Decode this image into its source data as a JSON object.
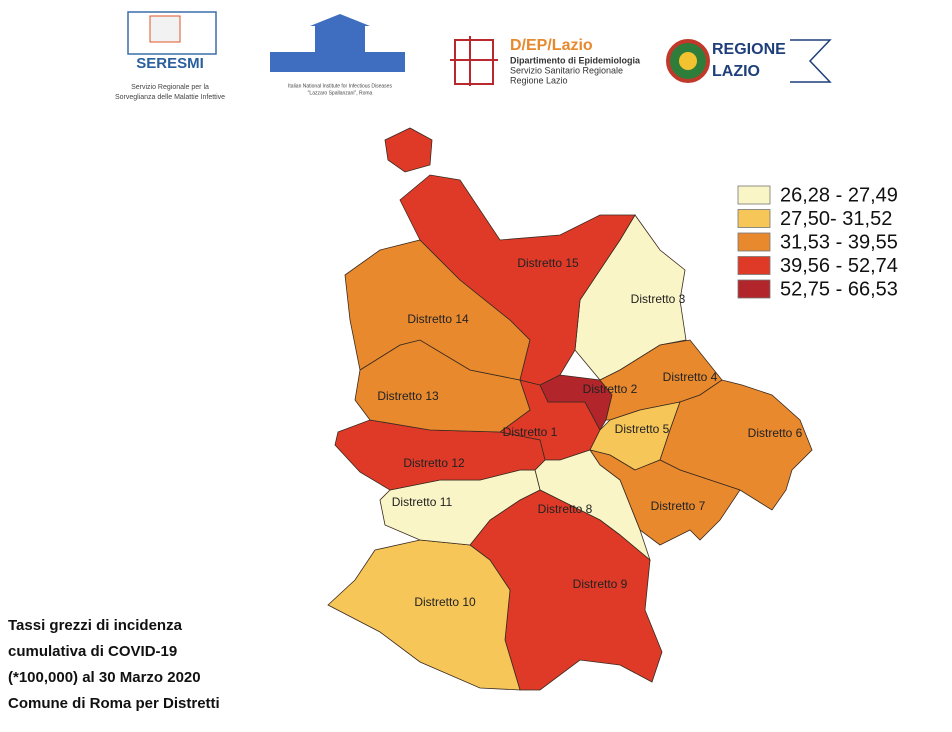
{
  "header": {
    "logos": [
      {
        "title": "SERESMI",
        "lines": [
          "Servizio Regionale per la",
          "Sorveglianza delle Malattie Infettive"
        ]
      },
      {
        "lines": [
          "Italian National Institute for Infectious Diseases",
          "\"Lazzaro Spallanzani\", Roma"
        ]
      },
      {
        "title": "D/EP/Lazio",
        "lines": [
          "Dipartimento di Epidemiologia",
          "Servizio Sanitario Regionale",
          "Regione Lazio"
        ]
      },
      {
        "lines": [
          "REGIONE",
          "LAZIO"
        ]
      }
    ]
  },
  "map": {
    "legend": [
      {
        "label": "26,28 - 27,49",
        "color": "#faf5c6"
      },
      {
        "label": "27,50- 31,52",
        "color": "#f6c659"
      },
      {
        "label": "31,53 - 39,55",
        "color": "#e8892e"
      },
      {
        "label": "39,56 - 52,74",
        "color": "#df3a28"
      },
      {
        "label": "52,75 - 66,53",
        "color": "#b2262b"
      }
    ],
    "districts": [
      {
        "label": "Distretto 1",
        "color": "#df3a28"
      },
      {
        "label": "Distretto 2",
        "color": "#b2262b"
      },
      {
        "label": "Distretto 3",
        "color": "#faf5c6"
      },
      {
        "label": "Distretto 4",
        "color": "#e8892e"
      },
      {
        "label": "Distretto 5",
        "color": "#f6c659"
      },
      {
        "label": "Distretto 6",
        "color": "#e8892e"
      },
      {
        "label": "Distretto 7",
        "color": "#e8892e"
      },
      {
        "label": "Distretto 8",
        "color": "#faf5c6"
      },
      {
        "label": "Distretto 9",
        "color": "#df3a28"
      },
      {
        "label": "Distretto 10",
        "color": "#f6c659"
      },
      {
        "label": "Distretto 11",
        "color": "#faf5c6"
      },
      {
        "label": "Distretto 12",
        "color": "#df3a28"
      },
      {
        "label": "Distretto 13",
        "color": "#e8892e"
      },
      {
        "label": "Distretto 14",
        "color": "#e8892e"
      },
      {
        "label": "Distretto 15",
        "color": "#df3a28"
      }
    ]
  },
  "caption": [
    "Tassi grezzi di incidenza",
    "cumulativa di COVID-19",
    "(*100,000) al 30 Marzo 2020",
    "Comune di Roma per Distretti"
  ]
}
